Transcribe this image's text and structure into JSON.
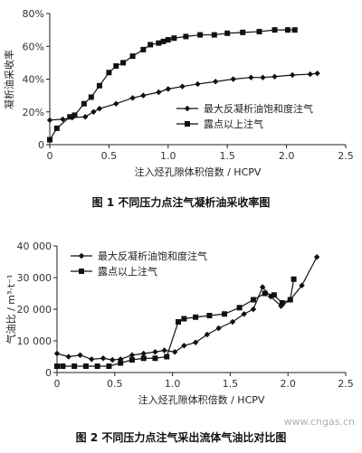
{
  "chart_data": [
    {
      "type": "line",
      "caption": "图 1   不同压力点注气凝析油采收率图",
      "xlabel": "注入烃孔隙体积倍数 / HCPV",
      "ylabel": "凝析油采收率",
      "xlim": [
        0,
        2.5
      ],
      "ylim": [
        0,
        80
      ],
      "xticks": [
        "0",
        "0.5",
        "1.0",
        "1.5",
        "2.0",
        "2.5"
      ],
      "yticks": [
        "0",
        "20%",
        "40%",
        "60%",
        "80%"
      ],
      "legend_position": "middle-right",
      "series": [
        {
          "name": "最大反凝析油饱和度注气",
          "marker": "diamond",
          "x": [
            0.0,
            0.11,
            0.19,
            0.3,
            0.37,
            0.42,
            0.56,
            0.7,
            0.79,
            0.92,
            1.0,
            1.12,
            1.25,
            1.4,
            1.55,
            1.7,
            1.8,
            1.9,
            2.05,
            2.2,
            2.26
          ],
          "y": [
            15,
            15.5,
            16.5,
            17,
            20,
            22,
            25,
            28.5,
            30,
            32,
            34,
            35.5,
            37,
            38.5,
            40,
            41,
            41,
            41.5,
            42.5,
            43,
            43.5
          ]
        },
        {
          "name": "露点以上注气",
          "marker": "square",
          "x": [
            0.0,
            0.06,
            0.17,
            0.21,
            0.29,
            0.35,
            0.42,
            0.5,
            0.56,
            0.62,
            0.7,
            0.79,
            0.85,
            0.92,
            0.96,
            1.0,
            1.05,
            1.15,
            1.27,
            1.39,
            1.5,
            1.63,
            1.77,
            1.9,
            2.01,
            2.07
          ],
          "y": [
            3,
            10,
            17,
            18,
            25,
            29,
            36,
            44,
            48,
            50,
            54,
            58,
            61,
            62,
            63,
            64,
            65,
            66,
            67,
            67,
            68,
            68.5,
            69,
            70,
            70,
            70
          ]
        }
      ]
    },
    {
      "type": "line",
      "caption": "图 2   不同压力点注气采出流体气油比对比图",
      "xlabel": "注入烃孔隙体积倍数 / HCPV",
      "ylabel": "气油比 / m³·t⁻¹",
      "xlim": [
        0,
        2.5
      ],
      "ylim": [
        0,
        40000
      ],
      "xticks": [
        "0",
        "0.5",
        "1.0",
        "1.5",
        "2.0",
        "2.5"
      ],
      "yticks": [
        "0",
        "10 000",
        "20 000",
        "30 000",
        "40 000"
      ],
      "legend_position": "top-left",
      "series": [
        {
          "name": "最大反凝析油饱和度注气",
          "marker": "diamond",
          "x": [
            0.0,
            0.1,
            0.2,
            0.3,
            0.4,
            0.48,
            0.55,
            0.65,
            0.75,
            0.85,
            0.93,
            1.02,
            1.1,
            1.2,
            1.3,
            1.4,
            1.52,
            1.62,
            1.7,
            1.78,
            1.85,
            1.94,
            2.02,
            2.12,
            2.25
          ],
          "y": [
            6000,
            5000,
            5500,
            4200,
            4500,
            4000,
            4200,
            5500,
            6000,
            6500,
            7000,
            6500,
            8500,
            9500,
            12000,
            14000,
            16000,
            18500,
            20000,
            27000,
            24000,
            21000,
            23000,
            27500,
            36500
          ]
        },
        {
          "name": "露点以上注气",
          "marker": "square",
          "x": [
            0.0,
            0.05,
            0.15,
            0.25,
            0.35,
            0.45,
            0.55,
            0.65,
            0.75,
            0.85,
            0.95,
            1.05,
            1.1,
            1.2,
            1.32,
            1.45,
            1.58,
            1.7,
            1.8,
            1.88,
            1.95,
            2.02,
            2.05
          ],
          "y": [
            2000,
            2000,
            2000,
            2000,
            2000,
            2000,
            3000,
            4000,
            4500,
            4500,
            5000,
            16000,
            17000,
            17500,
            18000,
            18500,
            20500,
            23000,
            25000,
            24500,
            22000,
            23000,
            29500
          ]
        }
      ]
    }
  ],
  "watermark": "www.cngas.cn"
}
